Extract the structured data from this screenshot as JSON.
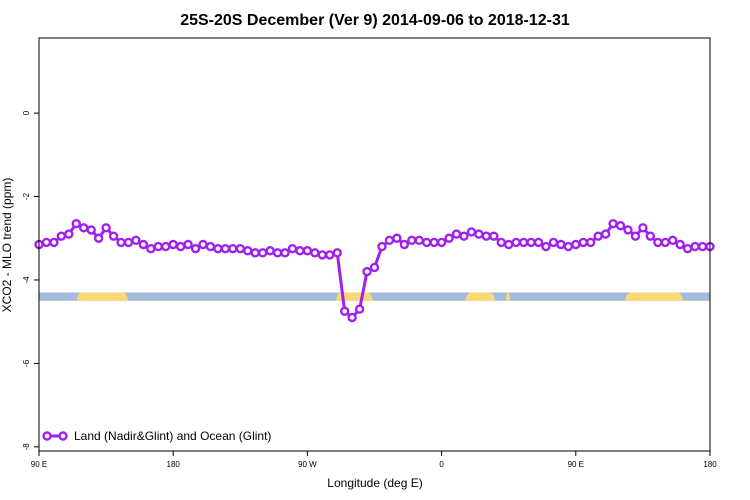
{
  "chart_data": {
    "type": "line",
    "title": "25S-20S December (Ver 9)   2014-09-06 to 2018-12-31",
    "xlabel": "Longitude (deg E)",
    "ylabel": "XCO2 - MLO trend (ppm)",
    "xlim": [
      90,
      540
    ],
    "ylim": [
      -8.1,
      1.8
    ],
    "xticks": [
      {
        "value": 90,
        "label": "90 E"
      },
      {
        "value": 180,
        "label": "180"
      },
      {
        "value": 270,
        "label": "90 W"
      },
      {
        "value": 360,
        "label": "0"
      },
      {
        "value": 450,
        "label": "90 E"
      },
      {
        "value": 540,
        "label": "180"
      }
    ],
    "yticks": [
      {
        "value": 0,
        "label": "0"
      },
      {
        "value": -2,
        "label": "-2"
      },
      {
        "value": -4,
        "label": "-4"
      },
      {
        "value": -6,
        "label": "-6"
      },
      {
        "value": -8,
        "label": "-8"
      }
    ],
    "grid": false,
    "series": [
      {
        "name": "Land (Nadir&Glint) and Ocean (Glint)",
        "color": "#a020f0",
        "x": [
          90,
          95,
          100,
          105,
          110,
          115,
          120,
          125,
          130,
          135,
          140,
          145,
          150,
          155,
          160,
          165,
          170,
          175,
          180,
          185,
          190,
          195,
          200,
          205,
          210,
          215,
          220,
          225,
          230,
          235,
          240,
          245,
          250,
          255,
          260,
          265,
          270,
          275,
          280,
          285,
          290,
          295,
          300,
          305,
          310,
          315,
          320,
          325,
          330,
          335,
          340,
          345,
          350,
          355,
          360,
          365,
          370,
          375,
          380,
          385,
          390,
          395,
          400,
          405,
          410,
          415,
          420,
          425,
          430,
          435,
          440,
          445,
          450,
          455,
          460,
          465,
          470,
          475,
          480,
          485,
          490,
          495,
          500,
          505,
          510,
          515,
          520,
          525,
          530,
          535,
          540
        ],
        "values": [
          -3.15,
          -3.1,
          -3.1,
          -2.95,
          -2.9,
          -2.65,
          -2.75,
          -2.8,
          -3.0,
          -2.75,
          -2.95,
          -3.1,
          -3.1,
          -3.05,
          -3.15,
          -3.25,
          -3.2,
          -3.2,
          -3.15,
          -3.2,
          -3.15,
          -3.25,
          -3.15,
          -3.2,
          -3.25,
          -3.25,
          -3.25,
          -3.25,
          -3.3,
          -3.35,
          -3.35,
          -3.3,
          -3.35,
          -3.35,
          -3.25,
          -3.3,
          -3.3,
          -3.35,
          -3.4,
          -3.4,
          -3.35,
          -4.75,
          -4.9,
          -4.7,
          -3.8,
          -3.7,
          -3.2,
          -3.05,
          -3.0,
          -3.15,
          -3.05,
          -3.05,
          -3.1,
          -3.1,
          -3.1,
          -3.0,
          -2.9,
          -2.95,
          -2.85,
          -2.9,
          -2.95,
          -2.95,
          -3.1,
          -3.15,
          -3.1,
          -3.1,
          -3.1,
          -3.1,
          -3.2,
          -3.1,
          -3.15,
          -3.2,
          -3.15,
          -3.1,
          -3.1,
          -2.95,
          -2.9,
          -2.65,
          -2.7,
          -2.8,
          -2.95,
          -2.75,
          -2.95,
          -3.1,
          -3.1,
          -3.05,
          -3.15,
          -3.25,
          -3.2,
          -3.2,
          -3.2
        ]
      }
    ],
    "surface_band": {
      "y_top": -4.3,
      "y_bottom": -4.5,
      "ocean_color": "#a3bbdc",
      "land_color": "#fad877",
      "land_segments": [
        [
          115,
          150
        ],
        [
          289,
          314
        ],
        [
          376,
          396
        ],
        [
          403,
          406
        ],
        [
          483,
          522
        ]
      ]
    },
    "legend": {
      "position": "bottom-left",
      "label": "Land (Nadir&Glint) and Ocean (Glint)"
    }
  }
}
